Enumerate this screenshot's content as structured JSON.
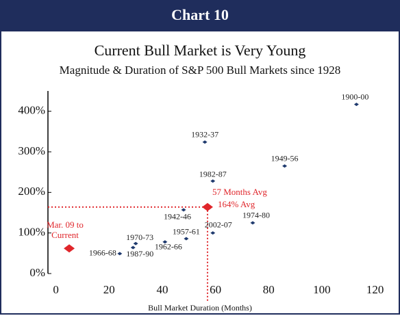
{
  "header": {
    "title": "Chart 10"
  },
  "chart_data": {
    "type": "scatter",
    "title": "Current Bull Market is Very Young",
    "subtitle": "Magnitude & Duration of S&P 500 Bull Markets since 1928",
    "x_label": "Bull Market Duration (Months)",
    "xlim": [
      -3,
      125
    ],
    "ylim": [
      0,
      450
    ],
    "xticks": [
      0,
      20,
      40,
      60,
      80,
      100,
      120
    ],
    "yticks": [
      {
        "value": 0,
        "label": "0%"
      },
      {
        "value": 100,
        "label": "100%"
      },
      {
        "value": 200,
        "label": "200%"
      },
      {
        "value": 300,
        "label": "300%"
      },
      {
        "value": 400,
        "label": "400%"
      }
    ],
    "series": [
      {
        "name": null,
        "color": "#1f3a6e",
        "labels": [
          "1900-00",
          "1932-37",
          "1949-56",
          "1982-87",
          "1942-46",
          "1974-80",
          "2002-07",
          "1957-61",
          "1962-66",
          "1970-73",
          "1987-90",
          "1966-68"
        ],
        "x": [
          113,
          56,
          86,
          59,
          48,
          74,
          59,
          49,
          41,
          30,
          29,
          24
        ],
        "values": [
          417,
          324,
          265,
          228,
          157,
          125,
          100,
          86,
          78,
          74,
          64,
          49
        ]
      },
      {
        "name": null,
        "color": "#e0262b",
        "x": [
          5,
          57
        ],
        "values": [
          62,
          164
        ]
      }
    ],
    "annotations": [
      "Mar. 09 to",
      "Current",
      "57 Months Avg",
      "164% Avg"
    ]
  }
}
